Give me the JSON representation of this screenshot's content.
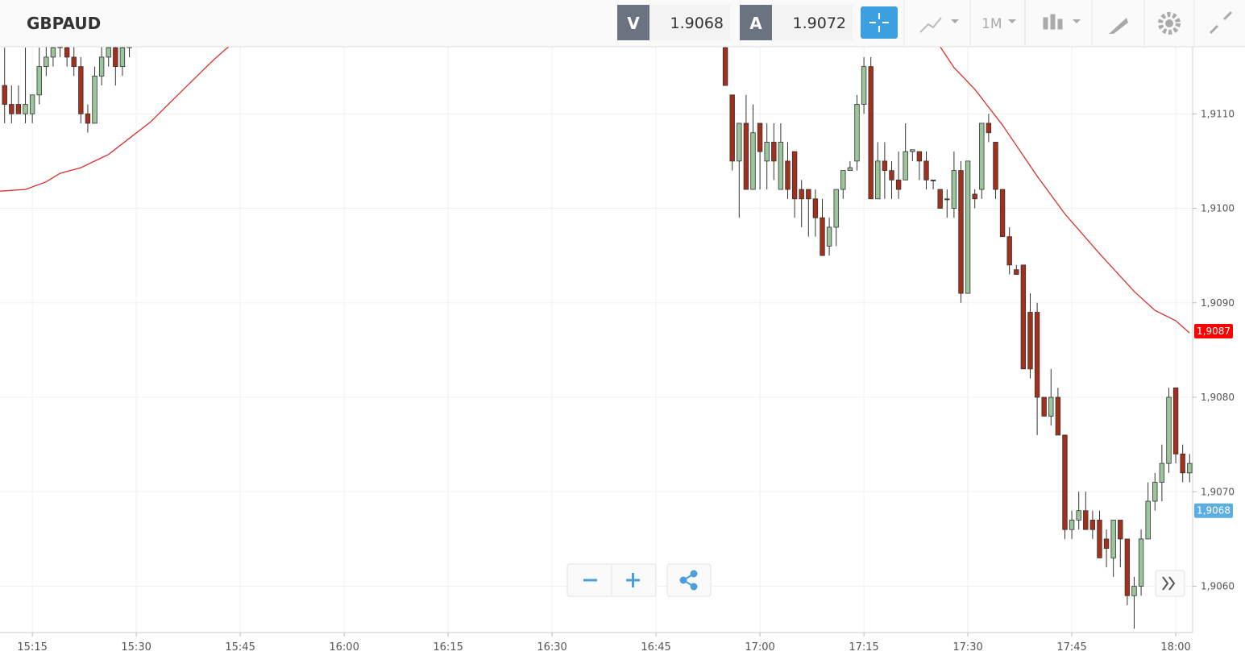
{
  "toolbar": {
    "symbol": "GBPAUD",
    "bid_label": "V",
    "bid": "1.9068",
    "ask_label": "A",
    "ask": "1.9072",
    "timeframe": "1M"
  },
  "chart_data": {
    "type": "candlestick",
    "up_color": "#9bc59b",
    "down_color": "#a3301c",
    "x": [
      "15:11",
      "15:12",
      "15:13",
      "15:14",
      "15:15",
      "15:16",
      "15:17",
      "15:18",
      "15:19",
      "15:20",
      "15:21",
      "15:22",
      "15:23",
      "15:24",
      "15:25",
      "15:26",
      "15:27",
      "15:28",
      "15:29",
      "16:55",
      "16:56",
      "16:57",
      "16:58",
      "16:59",
      "17:00",
      "17:01",
      "17:02",
      "17:03",
      "17:04",
      "17:05",
      "17:06",
      "17:07",
      "17:08",
      "17:09",
      "17:10",
      "17:11",
      "17:12",
      "17:13",
      "17:14",
      "17:15",
      "17:16",
      "17:17",
      "17:18",
      "17:19",
      "17:20",
      "17:21",
      "17:22",
      "17:23",
      "17:24",
      "17:25",
      "17:26",
      "17:27",
      "17:28",
      "17:29",
      "17:30",
      "17:31",
      "17:32",
      "17:33",
      "17:34",
      "17:35",
      "17:36",
      "17:37",
      "17:38",
      "17:39",
      "17:40",
      "17:41",
      "17:42",
      "17:43",
      "17:44",
      "17:45",
      "17:46",
      "17:47",
      "17:48",
      "17:49",
      "17:50",
      "17:51",
      "17:52",
      "17:53",
      "17:54",
      "17:55",
      "17:56",
      "17:57",
      "17:58",
      "17:59",
      "18:00",
      "18:01",
      "18:02"
    ],
    "open": [
      1.9113,
      1.9111,
      1.9111,
      1.911,
      1.911,
      1.9112,
      1.9115,
      1.9116,
      1.9118,
      1.9117,
      1.9116,
      1.9115,
      1.911,
      1.9109,
      1.9114,
      1.9116,
      1.9117,
      1.9115,
      1.9117,
      1.9117,
      1.9112,
      1.9105,
      1.9109,
      1.9102,
      1.9109,
      1.9105,
      1.9107,
      1.9102,
      1.9105,
      1.9106,
      1.9102,
      1.9102,
      1.9101,
      1.9099,
      1.9096,
      1.9098,
      1.9102,
      1.9104,
      1.9105,
      1.9111,
      1.9115,
      1.9101,
      1.9105,
      1.9104,
      1.9103,
      1.9103,
      1.9106,
      1.9106,
      1.9105,
      1.9103,
      1.9102,
      1.9101,
      1.91,
      1.9104,
      1.9091,
      1.91015,
      1.9102,
      1.9109,
      1.9107,
      1.9102,
      1.9097,
      1.90935,
      1.9094,
      1.9089,
      1.9089,
      1.908,
      1.9078,
      1.908,
      1.9076,
      1.9066,
      1.9067,
      1.9068,
      1.9067,
      1.9067,
      1.9065,
      1.9063,
      1.9067,
      1.9065,
      1.9059,
      1.906,
      1.9065,
      1.9069,
      1.9071,
      1.9073,
      1.9081,
      1.9074,
      1.9072
    ],
    "high": [
      1.9117,
      1.9113,
      1.9113,
      1.9117,
      1.9112,
      1.9117,
      1.9118,
      1.9119,
      1.9119,
      1.9118,
      1.9118,
      1.9116,
      1.9111,
      1.9115,
      1.9118,
      1.9119,
      1.9119,
      1.9118,
      1.9119,
      1.9118,
      1.9112,
      1.9109,
      1.9112,
      1.9111,
      1.9109,
      1.9109,
      1.9109,
      1.9109,
      1.9107,
      1.9106,
      1.9103,
      1.9102,
      1.9102,
      1.9101,
      1.9099,
      1.9102,
      1.9104,
      1.9105,
      1.9112,
      1.9116,
      1.9116,
      1.9107,
      1.9107,
      1.9105,
      1.9106,
      1.9109,
      1.9106,
      1.9106,
      1.9106,
      1.9103,
      1.9102,
      1.9102,
      1.9106,
      1.9105,
      1.9105,
      1.9102,
      1.9109,
      1.911,
      1.9107,
      1.9102,
      1.9098,
      1.9094,
      1.9094,
      1.9091,
      1.909,
      1.908,
      1.9083,
      1.9081,
      1.9076,
      1.9068,
      1.907,
      1.907,
      1.9068,
      1.9068,
      1.9066,
      1.9067,
      1.9067,
      1.9065,
      1.9061,
      1.9066,
      1.9071,
      1.9072,
      1.9075,
      1.9081,
      1.9081,
      1.9075,
      1.9074
    ],
    "low": [
      1.9109,
      1.9109,
      1.911,
      1.9109,
      1.9109,
      1.9111,
      1.9114,
      1.9115,
      1.9116,
      1.9115,
      1.9114,
      1.9109,
      1.9108,
      1.9109,
      1.9113,
      1.9115,
      1.9113,
      1.9114,
      1.9116,
      1.9113,
      1.9104,
      1.9099,
      1.9102,
      1.9102,
      1.9102,
      1.9102,
      1.9103,
      1.9102,
      1.9101,
      1.9099,
      1.9098,
      1.9097,
      1.9097,
      1.9095,
      1.9095,
      1.9096,
      1.9101,
      1.9104,
      1.9104,
      1.911,
      1.9101,
      1.9101,
      1.9101,
      1.9101,
      1.9101,
      1.9103,
      1.9105,
      1.9103,
      1.9102,
      1.9102,
      1.91,
      1.9099,
      1.9099,
      1.909,
      1.9091,
      1.91,
      1.9101,
      1.9107,
      1.9101,
      1.9097,
      1.9093,
      1.9093,
      1.9083,
      1.9082,
      1.9076,
      1.9078,
      1.9077,
      1.9076,
      1.9065,
      1.9065,
      1.9066,
      1.9066,
      1.9065,
      1.9063,
      1.9062,
      1.9061,
      1.9062,
      1.9058,
      1.90555,
      1.9059,
      1.9065,
      1.9068,
      1.9069,
      1.9072,
      1.9073,
      1.9071,
      1.9071
    ],
    "close": [
      1.9111,
      1.911,
      1.911,
      1.9111,
      1.9112,
      1.9115,
      1.9116,
      1.9117,
      1.9117,
      1.9116,
      1.9115,
      1.911,
      1.9109,
      1.9114,
      1.9116,
      1.9117,
      1.9115,
      1.9117,
      1.9118,
      1.9113,
      1.9105,
      1.9109,
      1.9102,
      1.9108,
      1.9106,
      1.9107,
      1.9105,
      1.9107,
      1.9102,
      1.9101,
      1.9101,
      1.9101,
      1.9099,
      1.9095,
      1.9098,
      1.9102,
      1.9104,
      1.91043,
      1.9111,
      1.9115,
      1.9101,
      1.9105,
      1.9104,
      1.9103,
      1.9102,
      1.9106,
      1.91062,
      1.9105,
      1.9103,
      1.91029,
      1.91,
      1.91009,
      1.9104,
      1.9091,
      1.9105,
      1.9101,
      1.9109,
      1.9108,
      1.9102,
      1.9097,
      1.9094,
      1.9093,
      1.9083,
      1.9083,
      1.908,
      1.9078,
      1.908,
      1.9076,
      1.9066,
      1.9067,
      1.9068,
      1.9066,
      1.9066,
      1.9063,
      1.9064,
      1.9067,
      1.9065,
      1.9059,
      1.906,
      1.9065,
      1.9069,
      1.9071,
      1.9073,
      1.908,
      1.9074,
      1.9072,
      1.9073
    ],
    "moving_average": {
      "color": "#d9302c",
      "x": [
        "15:10",
        "15:14",
        "15:17",
        "15:19",
        "15:22",
        "15:26",
        "15:29",
        "15:32",
        "15:36",
        "15:41",
        "15:43",
        "15:45",
        "16:00",
        "17:25",
        "17:26",
        "17:28",
        "17:31",
        "17:35",
        "17:40",
        "17:44",
        "17:49",
        "17:54",
        "17:57",
        "18:00",
        "18:02"
      ],
      "values": [
        1.91018,
        1.9102,
        1.91028,
        1.91037,
        1.91043,
        1.91057,
        1.91074,
        1.91091,
        1.9112,
        1.91156,
        1.91169,
        1.9118,
        null,
        1.9118,
        1.91171,
        1.91149,
        1.91126,
        1.91088,
        1.91034,
        1.90994,
        1.90952,
        1.90912,
        1.90892,
        1.90881,
        1.90868
      ]
    },
    "price_markers": [
      {
        "value": 1.9087,
        "label": "1,9087",
        "color": "#ff0000"
      },
      {
        "value": 1.9068,
        "label": "1,9068",
        "color": "#5aaee0"
      }
    ],
    "xlim": [
      "15:10:20",
      "18:02:26"
    ],
    "xticks": [
      "15:15",
      "15:30",
      "15:45",
      "16:00",
      "16:15",
      "16:30",
      "16:45",
      "17:00",
      "17:15",
      "17:30",
      "17:45",
      "18:00"
    ],
    "ylim": [
      1.90551,
      1.91171
    ],
    "yticks": [
      {
        "value": 1.906,
        "label": "1,9060"
      },
      {
        "value": 1.907,
        "label": "1,9070"
      },
      {
        "value": 1.908,
        "label": "1,9080"
      },
      {
        "value": 1.909,
        "label": "1,9090"
      },
      {
        "value": 1.91,
        "label": "1,9100"
      },
      {
        "value": 1.911,
        "label": "1,9110"
      }
    ],
    "grid": true
  }
}
